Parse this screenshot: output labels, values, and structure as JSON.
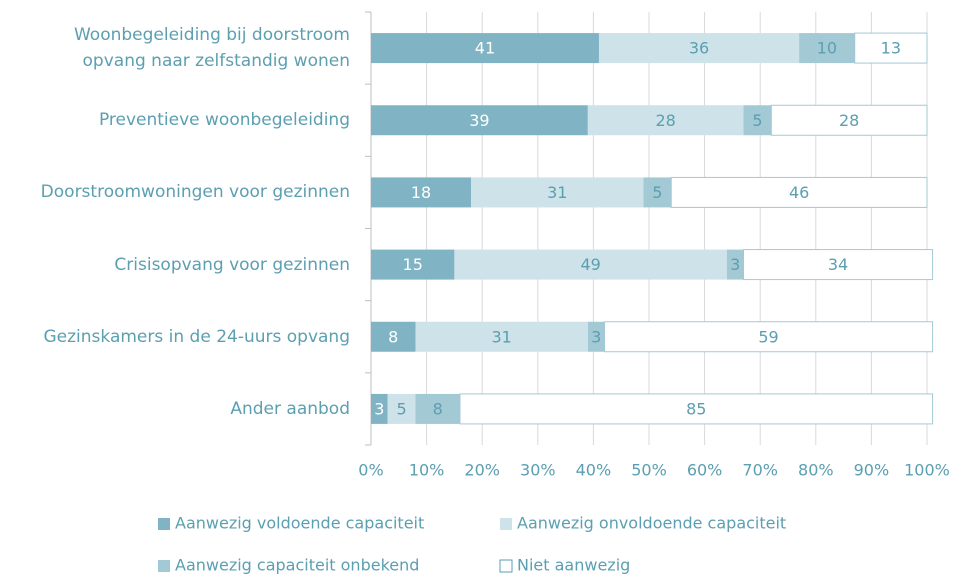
{
  "chart_data": {
    "type": "stacked_barh",
    "categories": [
      "Woonbegeleiding bij doorstroom\nopvang naar zelfstandig wonen",
      "Preventieve woonbegeleiding",
      "Doorstroomwoningen voor gezinnen",
      "Crisisopvang voor gezinnen",
      "Gezinskamers in de 24-uurs opvang",
      "Ander aanbod"
    ],
    "series": [
      {
        "name": "Aanwezig voldoende capaciteit",
        "color": "#80b3c3",
        "values": [
          41,
          39,
          18,
          15,
          8,
          3
        ]
      },
      {
        "name": "Aanwezig onvoldoende capaciteit",
        "color": "#cde2e9",
        "values": [
          36,
          28,
          31,
          49,
          31,
          5
        ]
      },
      {
        "name": "Aanwezig capaciteit onbekend",
        "color": "#a3c9d5",
        "values": [
          10,
          5,
          5,
          3,
          3,
          8
        ]
      },
      {
        "name": "Niet aanwezig",
        "color": "#ffffff",
        "values": [
          13,
          28,
          46,
          34,
          59,
          85
        ]
      }
    ],
    "xlim": [
      0,
      100
    ],
    "xticks": [
      {
        "value": 0,
        "label": "0%"
      },
      {
        "value": 10,
        "label": "10%"
      },
      {
        "value": 20,
        "label": "20%"
      },
      {
        "value": 30,
        "label": "30%"
      },
      {
        "value": 40,
        "label": "40%"
      },
      {
        "value": 50,
        "label": "50%"
      },
      {
        "value": 60,
        "label": "60%"
      },
      {
        "value": 70,
        "label": "70%"
      },
      {
        "value": 80,
        "label": "80%"
      },
      {
        "value": 90,
        "label": "90%"
      },
      {
        "value": 100,
        "label": "100%"
      }
    ],
    "grid": true
  }
}
